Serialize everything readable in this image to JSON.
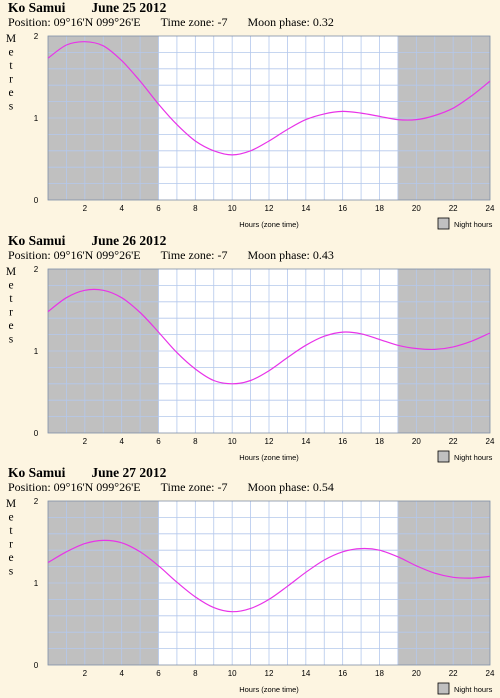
{
  "location": "Ko Samui",
  "position": "Position: 09°16'N 099°26'E",
  "timezone": "Time zone: -7",
  "charts": [
    {
      "date": "June 25 2012",
      "moon": "Moon phase: 0.32"
    },
    {
      "date": "June 26 2012",
      "moon": "Moon phase: 0.43"
    },
    {
      "date": "June 27 2012",
      "moon": "Moon phase: 0.54"
    }
  ],
  "ylabel": "Metres",
  "xlabel": "Hours (zone time)",
  "legend": "Night hours",
  "colors": {
    "background": "#fdf5e1",
    "night": "#c0c0c0",
    "grid": "#b4c8ec",
    "curve": "#e833e8"
  },
  "chart_data": [
    {
      "type": "line",
      "title": "Ko Samui June 25 2012",
      "xlabel": "Hours (zone time)",
      "ylabel": "Metres",
      "xlim": [
        0,
        24
      ],
      "ylim": [
        0,
        2
      ],
      "x_ticks": [
        2,
        4,
        6,
        8,
        10,
        12,
        14,
        16,
        18,
        20,
        22,
        24
      ],
      "y_ticks": [
        0,
        1,
        2
      ],
      "night_hours": [
        [
          0,
          6
        ],
        [
          19,
          24
        ]
      ],
      "series": [
        {
          "x": [
            0,
            1,
            2,
            3,
            4,
            5,
            6,
            7,
            8,
            9,
            10,
            11,
            12,
            13,
            14,
            15,
            16,
            17,
            18,
            19,
            20,
            21,
            22,
            23,
            24
          ],
          "y": [
            1.73,
            1.89,
            1.93,
            1.88,
            1.7,
            1.45,
            1.17,
            0.92,
            0.72,
            0.6,
            0.55,
            0.6,
            0.72,
            0.86,
            0.98,
            1.05,
            1.08,
            1.06,
            1.02,
            0.98,
            0.98,
            1.03,
            1.12,
            1.27,
            1.45
          ]
        }
      ]
    },
    {
      "type": "line",
      "title": "Ko Samui June 26 2012",
      "xlabel": "Hours (zone time)",
      "ylabel": "Metres",
      "xlim": [
        0,
        24
      ],
      "ylim": [
        0,
        2
      ],
      "x_ticks": [
        2,
        4,
        6,
        8,
        10,
        12,
        14,
        16,
        18,
        20,
        22,
        24
      ],
      "y_ticks": [
        0,
        1,
        2
      ],
      "night_hours": [
        [
          0,
          6
        ],
        [
          19,
          24
        ]
      ],
      "series": [
        {
          "x": [
            0,
            1,
            2,
            3,
            4,
            5,
            6,
            7,
            8,
            9,
            10,
            11,
            12,
            13,
            14,
            15,
            16,
            17,
            18,
            19,
            20,
            21,
            22,
            23,
            24
          ],
          "y": [
            1.48,
            1.65,
            1.74,
            1.74,
            1.65,
            1.47,
            1.23,
            0.98,
            0.78,
            0.64,
            0.6,
            0.64,
            0.76,
            0.92,
            1.07,
            1.18,
            1.23,
            1.21,
            1.14,
            1.07,
            1.03,
            1.02,
            1.05,
            1.12,
            1.22
          ]
        }
      ]
    },
    {
      "type": "line",
      "title": "Ko Samui June 27 2012",
      "xlabel": "Hours (zone time)",
      "ylabel": "Metres",
      "xlim": [
        0,
        24
      ],
      "ylim": [
        0,
        2
      ],
      "x_ticks": [
        2,
        4,
        6,
        8,
        10,
        12,
        14,
        16,
        18,
        20,
        22,
        24
      ],
      "y_ticks": [
        0,
        1,
        2
      ],
      "night_hours": [
        [
          0,
          6
        ],
        [
          19,
          24
        ]
      ],
      "series": [
        {
          "x": [
            0,
            1,
            2,
            3,
            4,
            5,
            6,
            7,
            8,
            9,
            10,
            11,
            12,
            13,
            14,
            15,
            16,
            17,
            18,
            19,
            20,
            21,
            22,
            23,
            24
          ],
          "y": [
            1.25,
            1.38,
            1.48,
            1.52,
            1.49,
            1.38,
            1.21,
            1.01,
            0.83,
            0.7,
            0.65,
            0.69,
            0.8,
            0.96,
            1.13,
            1.28,
            1.38,
            1.42,
            1.4,
            1.32,
            1.21,
            1.12,
            1.07,
            1.06,
            1.08
          ]
        }
      ]
    }
  ]
}
